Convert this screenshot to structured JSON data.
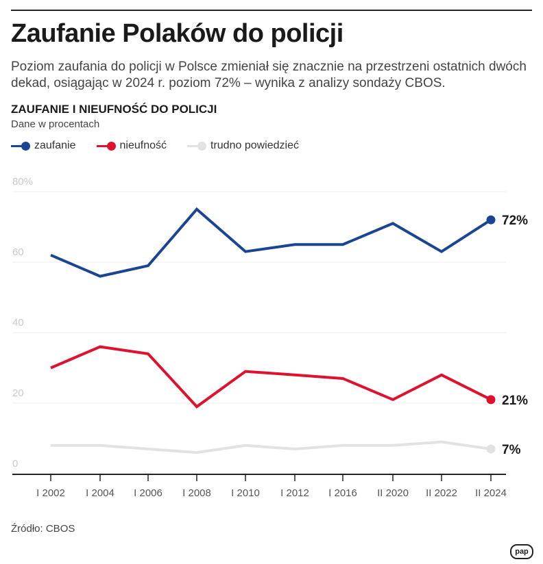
{
  "title": "Zaufanie Polaków do policji",
  "subtitle": "Poziom zaufania do policji w Polsce zmieniał się znacznie na przestrzeni ostatnich dwóch dekad, osiągając w 2024 r. poziom 72% – wynika z analizy sondaży CBOS.",
  "source": "Źródło: CBOS",
  "logo": "pap",
  "chart_data": {
    "type": "line",
    "title": "ZAUFANIE I NIEUFNOŚĆ DO POLICJI",
    "subtitle": "Dane w procentach",
    "categories": [
      "I 2002",
      "I 2004",
      "I 2006",
      "I 2008",
      "I 2010",
      "I 2012",
      "I 2016",
      "II 2020",
      "II 2022",
      "II 2024"
    ],
    "ylim": [
      0,
      80
    ],
    "yticks": [
      "0",
      "20",
      "40",
      "60",
      "80%"
    ],
    "grid": true,
    "legend": "top-left",
    "series": [
      {
        "name": "zaufanie",
        "color": "#1a4592",
        "values": [
          62,
          56,
          59,
          75,
          63,
          65,
          65,
          71,
          63,
          72
        ],
        "end_label": "72%"
      },
      {
        "name": "nieufność",
        "color": "#e0102f",
        "values": [
          30,
          36,
          34,
          19,
          29,
          28,
          27,
          21,
          28,
          21
        ],
        "end_label": "21%"
      },
      {
        "name": "trudno powiedzieć",
        "color": "#e2e2e2",
        "values": [
          8,
          8,
          7,
          6,
          8,
          7,
          8,
          8,
          9,
          7
        ],
        "end_label": "7%"
      }
    ]
  }
}
